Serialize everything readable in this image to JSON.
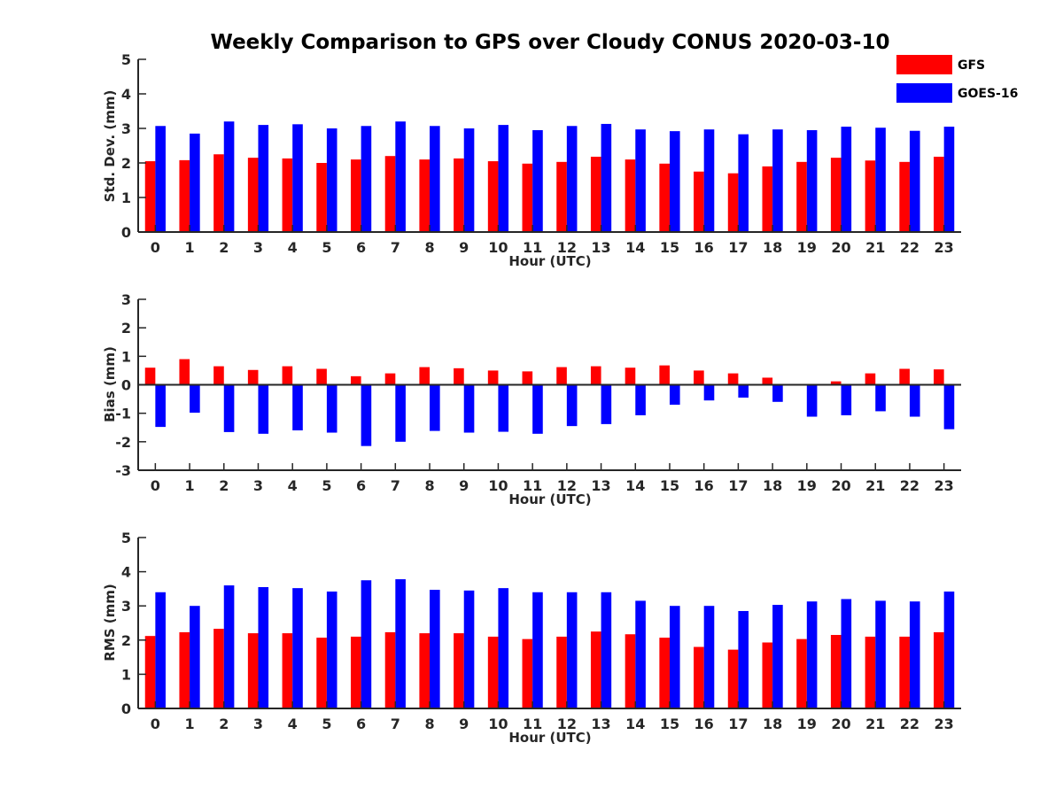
{
  "figure": {
    "title": "Weekly Comparison to GPS over Cloudy CONUS 2020-03-10"
  },
  "legend": {
    "placement": "top-right",
    "entries": [
      {
        "label": "GFS",
        "color": "#ff0000"
      },
      {
        "label": "GOES-16",
        "color": "#0000ff"
      }
    ]
  },
  "chart_data": [
    {
      "type": "bar",
      "xlabel": "Hour (UTC)",
      "ylabel": "Std. Dev. (mm)",
      "ylim": [
        0,
        5
      ],
      "yticks": [
        0,
        1,
        2,
        3,
        4,
        5
      ],
      "categories": [
        "0",
        "1",
        "2",
        "3",
        "4",
        "5",
        "6",
        "7",
        "8",
        "9",
        "10",
        "11",
        "12",
        "13",
        "14",
        "15",
        "16",
        "17",
        "18",
        "19",
        "20",
        "21",
        "22",
        "23"
      ],
      "series": [
        {
          "name": "GFS",
          "color": "#ff0000",
          "values": [
            2.05,
            2.08,
            2.25,
            2.15,
            2.13,
            2.0,
            2.1,
            2.2,
            2.1,
            2.13,
            2.05,
            1.98,
            2.03,
            2.18,
            2.1,
            1.98,
            1.75,
            1.7,
            1.9,
            2.03,
            2.15,
            2.07,
            2.03,
            2.18
          ]
        },
        {
          "name": "GOES-16",
          "color": "#0000ff",
          "values": [
            3.07,
            2.85,
            3.2,
            3.1,
            3.12,
            3.0,
            3.07,
            3.2,
            3.07,
            3.0,
            3.1,
            2.95,
            3.07,
            3.13,
            2.97,
            2.92,
            2.97,
            2.83,
            2.97,
            2.95,
            3.05,
            3.02,
            2.93,
            3.05
          ]
        }
      ]
    },
    {
      "type": "bar",
      "xlabel": "Hour (UTC)",
      "ylabel": "Bias (mm)",
      "ylim": [
        -3,
        3
      ],
      "yticks": [
        -3,
        -2,
        -1,
        0,
        1,
        2,
        3
      ],
      "categories": [
        "0",
        "1",
        "2",
        "3",
        "4",
        "5",
        "6",
        "7",
        "8",
        "9",
        "10",
        "11",
        "12",
        "13",
        "14",
        "15",
        "16",
        "17",
        "18",
        "19",
        "20",
        "21",
        "22",
        "23"
      ],
      "series": [
        {
          "name": "GFS",
          "color": "#ff0000",
          "values": [
            0.6,
            0.9,
            0.65,
            0.52,
            0.65,
            0.56,
            0.3,
            0.4,
            0.62,
            0.58,
            0.5,
            0.47,
            0.62,
            0.65,
            0.6,
            0.68,
            0.5,
            0.4,
            0.25,
            0.02,
            0.12,
            0.4,
            0.56,
            0.54
          ]
        },
        {
          "name": "GOES-16",
          "color": "#0000ff",
          "values": [
            -1.48,
            -0.98,
            -1.66,
            -1.72,
            -1.6,
            -1.68,
            -2.15,
            -2.0,
            -1.62,
            -1.68,
            -1.65,
            -1.72,
            -1.45,
            -1.38,
            -1.07,
            -0.7,
            -0.55,
            -0.45,
            -0.6,
            -1.12,
            -1.07,
            -0.93,
            -1.12,
            -1.56
          ]
        }
      ]
    },
    {
      "type": "bar",
      "xlabel": "Hour (UTC)",
      "ylabel": "RMS (mm)",
      "ylim": [
        0,
        5
      ],
      "yticks": [
        0,
        1,
        2,
        3,
        4,
        5
      ],
      "categories": [
        "0",
        "1",
        "2",
        "3",
        "4",
        "5",
        "6",
        "7",
        "8",
        "9",
        "10",
        "11",
        "12",
        "13",
        "14",
        "15",
        "16",
        "17",
        "18",
        "19",
        "20",
        "21",
        "22",
        "23"
      ],
      "series": [
        {
          "name": "GFS",
          "color": "#ff0000",
          "values": [
            2.12,
            2.23,
            2.33,
            2.2,
            2.2,
            2.07,
            2.1,
            2.23,
            2.2,
            2.2,
            2.1,
            2.03,
            2.1,
            2.25,
            2.17,
            2.07,
            1.8,
            1.72,
            1.93,
            2.03,
            2.15,
            2.1,
            2.1,
            2.23
          ]
        },
        {
          "name": "GOES-16",
          "color": "#0000ff",
          "values": [
            3.4,
            3.0,
            3.6,
            3.55,
            3.52,
            3.42,
            3.75,
            3.78,
            3.47,
            3.45,
            3.52,
            3.4,
            3.4,
            3.4,
            3.15,
            3.0,
            3.0,
            2.85,
            3.03,
            3.13,
            3.2,
            3.15,
            3.13,
            3.42
          ]
        }
      ]
    }
  ]
}
